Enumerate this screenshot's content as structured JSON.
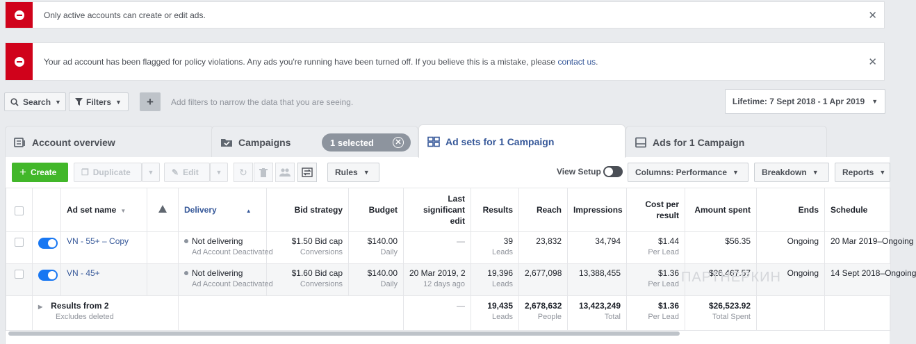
{
  "banners": [
    {
      "message": "Only active accounts can create or edit ads."
    },
    {
      "message": "Your ad account has been flagged for policy violations. Any ads you're running have been turned off. If you believe this is a mistake, please ",
      "link": "contact us",
      "suffix": "."
    }
  ],
  "toolbar": {
    "search_label": "Search",
    "filters_label": "Filters",
    "plus_label": "+",
    "filter_hint": "Add filters to narrow the data that you are seeing.",
    "date_range": "Lifetime: 7 Sept 2018 - 1 Apr 2019"
  },
  "tabs": {
    "account": "Account overview",
    "campaigns": "Campaigns",
    "selected_pill": "1 selected",
    "adsets": "Ad sets for 1 Campaign",
    "ads": "Ads for 1 Campaign"
  },
  "actions": {
    "create": "Create",
    "duplicate": "Duplicate",
    "edit": "Edit",
    "rules": "Rules",
    "view_setup": "View Setup",
    "columns": "Columns: Performance",
    "breakdown": "Breakdown",
    "reports": "Reports"
  },
  "columns": {
    "name": "Ad set name",
    "delivery": "Delivery",
    "bid": "Bid strategy",
    "budget": "Budget",
    "last_edit_1": "Last",
    "last_edit_2": "significant",
    "last_edit_3": "edit",
    "results": "Results",
    "reach": "Reach",
    "impressions": "Impressions",
    "cpr_1": "Cost per",
    "cpr_2": "result",
    "spent": "Amount spent",
    "ends": "Ends",
    "schedule": "Schedule"
  },
  "rows": [
    {
      "name": "VN - 55+ – Copy",
      "delivery": "Not delivering",
      "delivery_sub": "Ad Account Deactivated",
      "bid": "$1.50 Bid cap",
      "bid_sub": "Conversions",
      "budget": "$140.00",
      "budget_sub": "Daily",
      "last_edit": "—",
      "last_edit_sub": "",
      "results": "39",
      "results_sub": "Leads",
      "reach": "23,832",
      "impressions": "34,794",
      "cpr": "$1.44",
      "cpr_sub": "Per Lead",
      "spent": "$56.35",
      "ends": "Ongoing",
      "schedule": "20 Mar 2019–Ongoing"
    },
    {
      "name": "VN - 45+",
      "delivery": "Not delivering",
      "delivery_sub": "Ad Account Deactivated",
      "bid": "$1.60 Bid cap",
      "bid_sub": "Conversions",
      "budget": "$140.00",
      "budget_sub": "Daily",
      "last_edit": "20 Mar 2019, 2",
      "last_edit_sub": "12 days ago",
      "results": "19,396",
      "results_sub": "Leads",
      "reach": "2,677,098",
      "impressions": "13,388,455",
      "cpr": "$1.36",
      "cpr_sub": "Per Lead",
      "spent": "$26,467.57",
      "ends": "Ongoing",
      "schedule": "14 Sept 2018–Ongoing"
    }
  ],
  "summary": {
    "title": "Results from 2",
    "sub": "Excludes deleted",
    "last_edit": "—",
    "results": "19,435",
    "results_sub": "Leads",
    "reach": "2,678,632",
    "reach_sub": "People",
    "impressions": "13,423,249",
    "impressions_sub": "Total",
    "cpr": "$1.36",
    "cpr_sub": "Per Lead",
    "spent": "$26,523.92",
    "spent_sub": "Total Spent"
  },
  "watermark": "ПАРТНЕРКИН",
  "colors": {
    "error": "#d0021b",
    "create": "#42b72a",
    "link": "#365899",
    "toggle": "#1877f2"
  }
}
